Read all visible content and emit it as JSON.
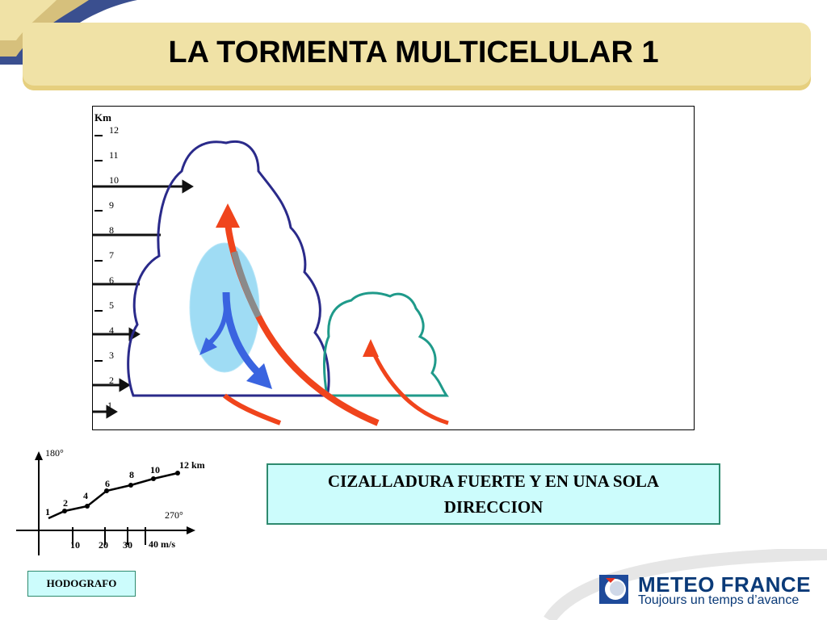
{
  "slide": {
    "title": "LA TORMENTA MULTICELULAR 1"
  },
  "diagram": {
    "height_unit": "Km",
    "levels": [
      "12",
      "11",
      "10",
      "9",
      "8",
      "7",
      "6",
      "5",
      "4",
      "3",
      "2",
      "1"
    ]
  },
  "hodograph": {
    "label": "HODOGRAFO",
    "top_direction": "180°",
    "right_direction": "270°",
    "height_unit_label": "12 km",
    "speed_ticks": [
      "10",
      "20",
      "30"
    ],
    "speed_unit_label": "40 m/s",
    "point_labels": [
      "1",
      "2",
      "4",
      "6",
      "8",
      "10"
    ]
  },
  "caption": {
    "text": "CIZALLADURA FUERTE Y EN UNA SOLA DIRECCION"
  },
  "brand": {
    "name": "METEO FRANCE",
    "tagline": "Toujours un temps d’avance"
  },
  "colors": {
    "banner": "#f0e2a6",
    "cloud_outline_main": "#2a2a8a",
    "cloud_outline_new": "#1f9a8a",
    "updraft": "#f0441c",
    "downdraft": "#3a64e0",
    "downdraft_zone": "#9fdcf4",
    "caption_bg": "#ccfcfc"
  }
}
